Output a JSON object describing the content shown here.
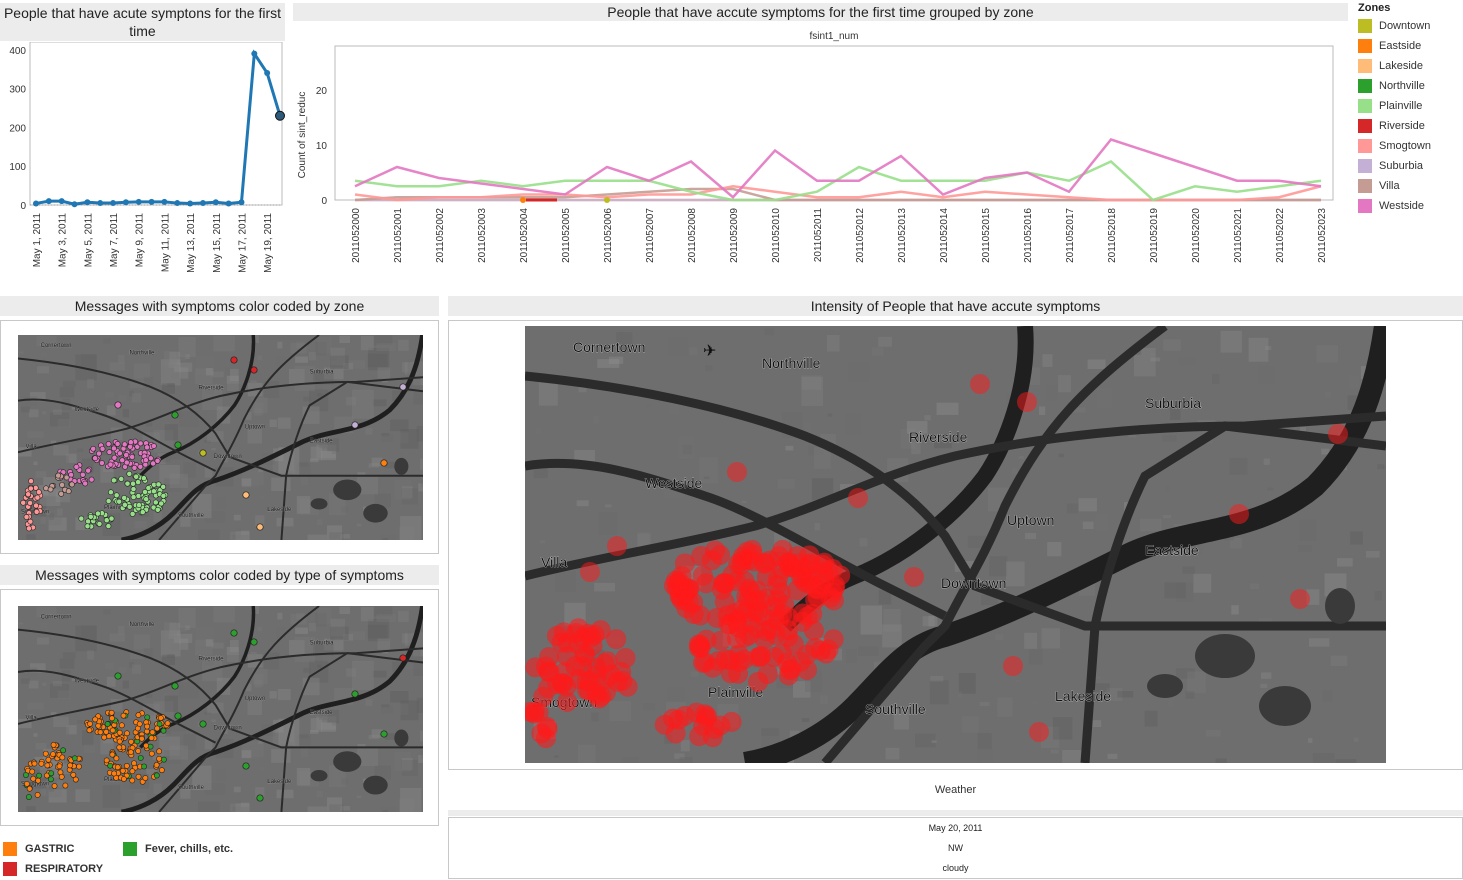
{
  "panels": {
    "line_title": "People that have acute symptons for the first time",
    "zone_title": "People that have accute symptoms for the first time grouped by zone",
    "zone_subtitle": "fsint1_num",
    "zone_ylabel": "Count of sint_reduc",
    "map1_title": "Messages with symptoms color coded by zone",
    "map2_title": "Messages with symptoms color coded by type of symptoms",
    "heat_title": "Intensity of People that have accute symptoms"
  },
  "legend": {
    "title": "Zones",
    "items": [
      {
        "label": "Downtown",
        "color": "#bcbd22"
      },
      {
        "label": "Eastside",
        "color": "#ff7f0e"
      },
      {
        "label": "Lakeside",
        "color": "#ffbb78"
      },
      {
        "label": "Northville",
        "color": "#2ca02c"
      },
      {
        "label": "Plainville",
        "color": "#98df8a"
      },
      {
        "label": "Riverside",
        "color": "#d62728"
      },
      {
        "label": "Smogtown",
        "color": "#ff9896"
      },
      {
        "label": "Suburbia",
        "color": "#c5b0d5"
      },
      {
        "label": "Villa",
        "color": "#c49c94"
      },
      {
        "label": "Westside",
        "color": "#e377c2"
      }
    ]
  },
  "symptom_legend": [
    {
      "label": "GASTRIC",
      "color": "#ff7f0e"
    },
    {
      "label": "Fever, chills, etc.",
      "color": "#2ca02c"
    },
    {
      "label": "RESPIRATORY",
      "color": "#d62728"
    }
  ],
  "map_labels": {
    "cornertown": "Cornertown",
    "northville": "Northville",
    "riverside": "Riverside",
    "suburbia": "Suburbia",
    "westside": "Westside",
    "uptown": "Uptown",
    "eastside": "Eastside",
    "villa": "Villa",
    "downtown": "Downtown",
    "smogtown": "Smogtown",
    "plainville": "Plainville",
    "southville": "Southville",
    "lakeside": "Lakeside"
  },
  "weather": {
    "title": "Weather",
    "date": "May 20, 2011",
    "wind": "NW",
    "condition": "cloudy"
  },
  "chart_data": [
    {
      "type": "line",
      "title": "People that have acute symptons for the first time",
      "x": [
        "May 1, 2011",
        "May 2, 2011",
        "May 3, 2011",
        "May 4, 2011",
        "May 5, 2011",
        "May 6, 2011",
        "May 7, 2011",
        "May 8, 2011",
        "May 9, 2011",
        "May 10, 2011",
        "May 11, 2011",
        "May 12, 2011",
        "May 13, 2011",
        "May 14, 2011",
        "May 15, 2011",
        "May 16, 2011",
        "May 17, 2011",
        "May 18, 2011",
        "May 19, 2011",
        "May 20, 2011"
      ],
      "xticks": [
        "May 1, 2011",
        "May 3, 2011",
        "May 5, 2011",
        "May 7, 2011",
        "May 9, 2011",
        "May 11, 2011",
        "May 13, 2011",
        "May 15, 2011",
        "May 17, 2011",
        "May 19, 2011"
      ],
      "values": [
        4,
        10,
        10,
        2,
        7,
        5,
        5,
        7,
        8,
        8,
        8,
        5,
        4,
        5,
        7,
        4,
        7,
        390,
        340,
        230
      ],
      "ylim": [
        0,
        420
      ],
      "yticks": [
        0,
        100,
        200,
        300,
        400
      ],
      "color": "#1f77b4"
    },
    {
      "type": "line",
      "title": "People that have accute symptoms for the first time grouped by zone",
      "subtitle": "fsint1_num",
      "ylabel": "Count of sint_reduc",
      "categories": [
        "2011052000",
        "2011052001",
        "2011052002",
        "2011052003",
        "2011052004",
        "2011052005",
        "2011052006",
        "2011052007",
        "2011052008",
        "2011052009",
        "2011052010",
        "2011052011",
        "2011052012",
        "2011052013",
        "2011052014",
        "2011052015",
        "2011052016",
        "2011052017",
        "2011052018",
        "2011052019",
        "2011052020",
        "2011052021",
        "2011052022",
        "2011052023"
      ],
      "ylim": [
        0,
        28
      ],
      "yticks": [
        0,
        10,
        20
      ],
      "series": [
        {
          "name": "Westside",
          "color": "#e377c2",
          "values": [
            2.5,
            6,
            4,
            3,
            2,
            1,
            6,
            3.5,
            7,
            0.5,
            9,
            3.5,
            3.5,
            8,
            1,
            4,
            5,
            1.5,
            11,
            8.5,
            6,
            3.5,
            3.5,
            2.5
          ]
        },
        {
          "name": "Plainville",
          "color": "#98df8a",
          "values": [
            3.5,
            2.5,
            2.5,
            3.5,
            2.5,
            3.5,
            3.5,
            3.5,
            1.5,
            0,
            0,
            1.5,
            6,
            3.5,
            3.5,
            3.5,
            5,
            3.5,
            7,
            0,
            2.5,
            1.5,
            2.5,
            3.5
          ]
        },
        {
          "name": "Smogtown",
          "color": "#ff9896",
          "values": [
            1,
            0,
            0.5,
            0.5,
            1,
            1,
            0.5,
            1,
            1,
            2.5,
            1.5,
            0.5,
            0.5,
            1.5,
            0.5,
            1.5,
            1,
            0.5,
            0,
            0,
            0,
            0,
            0.5,
            2.5
          ]
        },
        {
          "name": "Villa",
          "color": "#c49c94",
          "values": [
            0,
            0.5,
            0.5,
            0.5,
            0.5,
            0.5,
            1,
            1.5,
            2,
            2,
            0,
            0,
            0,
            0,
            0,
            0,
            0,
            0,
            0,
            0,
            0,
            0,
            0,
            0
          ]
        },
        {
          "name": "Suburbia",
          "color": "#c5b0d5",
          "values": [
            0,
            0,
            0,
            0,
            0,
            0,
            0,
            0,
            0,
            0,
            0,
            0,
            0,
            0,
            0,
            0,
            0,
            0,
            0,
            0,
            0,
            0,
            0,
            0
          ]
        },
        {
          "name": "Lakeside",
          "color": "#ffbb78",
          "values": [
            0,
            0,
            0,
            0,
            0,
            0,
            0,
            0,
            0,
            0,
            0,
            0,
            0,
            0,
            0,
            0,
            0,
            0,
            0,
            0,
            0,
            0,
            0,
            0
          ]
        }
      ],
      "legend": "right"
    }
  ]
}
